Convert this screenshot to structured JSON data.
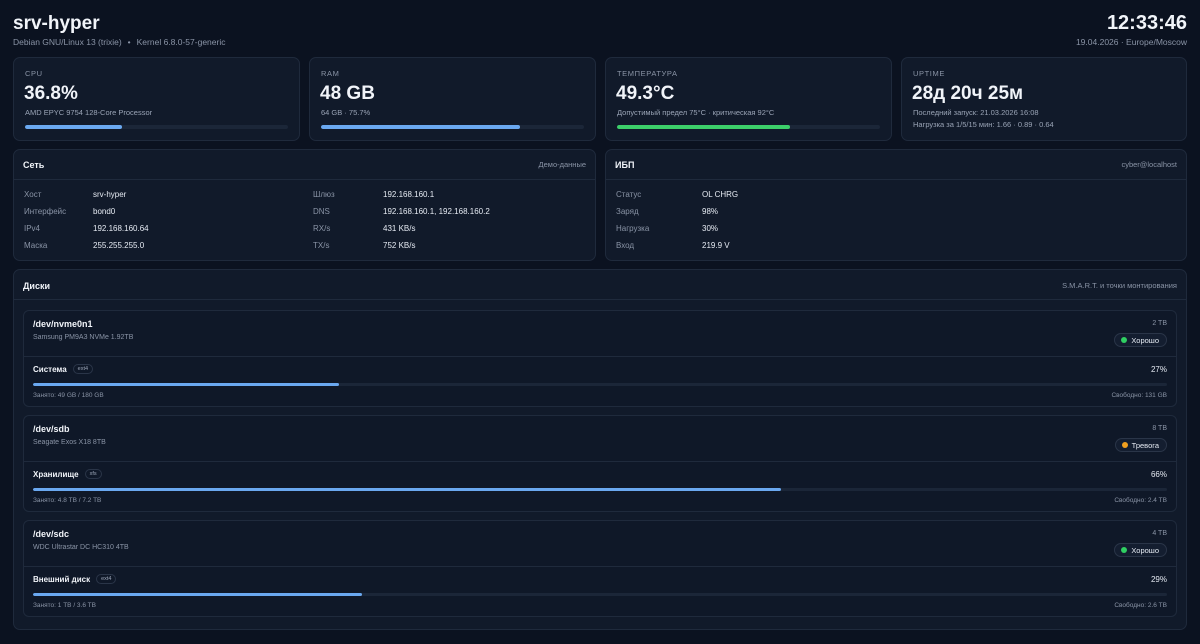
{
  "header": {
    "hostname": "srv-hyper",
    "os": "Debian GNU/Linux 13 (trixie)",
    "kernel": "Kernel 6.8.0-57-generic",
    "time": "12:33:46",
    "date_tz": "19.04.2026 · Europe/Moscow"
  },
  "stats": {
    "cpu": {
      "label": "CPU",
      "value": "36.8%",
      "sub": "AMD EPYC 9754 128-Core Processor",
      "fill": 0.368
    },
    "ram": {
      "label": "RAM",
      "value": "48 GB",
      "sub": "64 GB · 75.7%",
      "fill": 0.757
    },
    "temp": {
      "label": "ТЕМПЕРАТУРА",
      "value": "49.3°C",
      "sub": "Допустимый предел 75°C · критическая 92°C",
      "fill": 0.657
    },
    "uptime": {
      "label": "UPTIME",
      "value": "28д 20ч 25м",
      "sub": "Последний запуск: 21.03.2026 16:08",
      "sub2": "Нагрузка за 1/5/15 мин: 1.66 · 0.89 · 0.64"
    }
  },
  "network": {
    "title": "Сеть",
    "note": "Демо-данные",
    "rows": [
      {
        "k": "Хост",
        "v": "srv-hyper"
      },
      {
        "k": "Интерфейс",
        "v": "bond0"
      },
      {
        "k": "IPv4",
        "v": "192.168.160.64"
      },
      {
        "k": "Маска",
        "v": "255.255.255.0"
      },
      {
        "k": "Шлюз",
        "v": "192.168.160.1"
      },
      {
        "k": "DNS",
        "v": "192.168.160.1, 192.168.160.2"
      },
      {
        "k": "RX/s",
        "v": "431 KB/s"
      },
      {
        "k": "TX/s",
        "v": "752 KB/s"
      }
    ]
  },
  "ups": {
    "title": "ИБП",
    "note": "cyber@localhost",
    "rows": [
      {
        "k": "Статус",
        "v": "OL CHRG"
      },
      {
        "k": "Заряд",
        "v": "98%"
      },
      {
        "k": "Нагрузка",
        "v": "30%"
      },
      {
        "k": "Вход",
        "v": "219.9 V"
      }
    ]
  },
  "disks": {
    "title": "Диски",
    "note": "S.M.A.R.T. и точки монтирования",
    "items": [
      {
        "name": "/dev/nvme0n1",
        "model": "Samsung PM9A3 NVMe 1.92TB",
        "size": "2 TB",
        "health": "Хорошо",
        "health_color": "#2fcf62",
        "mount": "Система",
        "fs": "ext4",
        "pct": "27%",
        "fill": 0.27,
        "used": "Занято: 49 GB / 180 GB",
        "free": "Свободно: 131 GB"
      },
      {
        "name": "/dev/sdb",
        "model": "Seagate Exos X18 8TB",
        "size": "8 TB",
        "health": "Тревога",
        "health_color": "#f0a020",
        "mount": "Хранилище",
        "fs": "xfs",
        "pct": "66%",
        "fill": 0.66,
        "used": "Занято: 4.8 TB / 7.2 TB",
        "free": "Свободно: 2.4 TB"
      },
      {
        "name": "/dev/sdc",
        "model": "WDC Ultrastar DC HC310 4TB",
        "size": "4 TB",
        "health": "Хорошо",
        "health_color": "#2fcf62",
        "mount": "Внешний диск",
        "fs": "ext4",
        "pct": "29%",
        "fill": 0.29,
        "used": "Занято: 1 TB / 3.6 TB",
        "free": "Свободно: 2.6 TB"
      }
    ]
  },
  "colors": {
    "accent": "#6aa8f0",
    "ok": "#3ccf6a",
    "bg": "#0b1220",
    "card": "#111a2a"
  }
}
